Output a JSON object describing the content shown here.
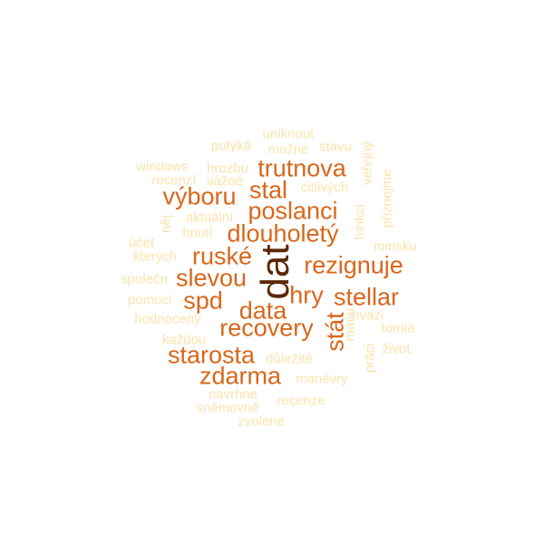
{
  "wordcloud": {
    "words": [
      {
        "text": "dat",
        "color": "#5a2806"
      },
      {
        "text": "trutnova",
        "color": "#d9661a"
      },
      {
        "text": "stal",
        "color": "#d9661a"
      },
      {
        "text": "výboru",
        "color": "#d9661a"
      },
      {
        "text": "poslanci",
        "color": "#d9661a"
      },
      {
        "text": "dlouholetý",
        "color": "#d9661a"
      },
      {
        "text": "ruské",
        "color": "#d9661a"
      },
      {
        "text": "rezignuje",
        "color": "#d9661a"
      },
      {
        "text": "slevou",
        "color": "#d9661a"
      },
      {
        "text": "hry",
        "color": "#d9661a"
      },
      {
        "text": "spd",
        "color": "#d9661a"
      },
      {
        "text": "stellar",
        "color": "#d9661a"
      },
      {
        "text": "data",
        "color": "#d9661a"
      },
      {
        "text": "recovery",
        "color": "#d9661a"
      },
      {
        "text": "stát",
        "color": "#d9661a"
      },
      {
        "text": "starosta",
        "color": "#d9661a"
      },
      {
        "text": "zdarma",
        "color": "#d9661a"
      },
      {
        "text": "uniknout",
        "color": "#fbe3ac"
      },
      {
        "text": "potýká",
        "color": "#fbe3ac"
      },
      {
        "text": "možné",
        "color": "#fbe3ac"
      },
      {
        "text": "stavu",
        "color": "#fbe3ac"
      },
      {
        "text": "veřejný",
        "color": "#fbe3ac"
      },
      {
        "text": "windows",
        "color": "#fbe3ac"
      },
      {
        "text": "hrozbu",
        "color": "#fbe3ac"
      },
      {
        "text": "recenzí",
        "color": "#fbe3ac"
      },
      {
        "text": "vážné",
        "color": "#fbe3ac"
      },
      {
        "text": "citlivých",
        "color": "#fbe3ac"
      },
      {
        "text": "přiznejme",
        "color": "#fbe3ac"
      },
      {
        "text": "aktuální",
        "color": "#fbe3ac"
      },
      {
        "text": "něj",
        "color": "#fbe3ac"
      },
      {
        "text": "funkci",
        "color": "#fbe3ac"
      },
      {
        "text": "hnutí",
        "color": "#fbe3ac"
      },
      {
        "text": "účet",
        "color": "#fbe3ac"
      },
      {
        "text": "minsku",
        "color": "#fbe3ac"
      },
      {
        "text": "kterých",
        "color": "#fbe3ac"
      },
      {
        "text": "společn",
        "color": "#fbe3ac"
      },
      {
        "text": "pomoci",
        "color": "#fbe3ac"
      },
      {
        "text": "invazi",
        "color": "#fbe3ac"
      },
      {
        "text": "hodnocený",
        "color": "#fbe3ac"
      },
      {
        "text": "macu",
        "color": "#fbe3ac"
      },
      {
        "text": "tomia",
        "color": "#fbe3ac"
      },
      {
        "text": "každou",
        "color": "#fbe3ac"
      },
      {
        "text": "život",
        "color": "#fbe3ac"
      },
      {
        "text": "důležité",
        "color": "#fbe3ac"
      },
      {
        "text": "práci",
        "color": "#fbe3ac"
      },
      {
        "text": "manévry",
        "color": "#fbe3ac"
      },
      {
        "text": "navrhne",
        "color": "#fbe3ac"
      },
      {
        "text": "recenze",
        "color": "#fbe3ac"
      },
      {
        "text": "sněmovně",
        "color": "#fbe3ac"
      },
      {
        "text": "zvolené",
        "color": "#fbe3ac"
      }
    ]
  }
}
